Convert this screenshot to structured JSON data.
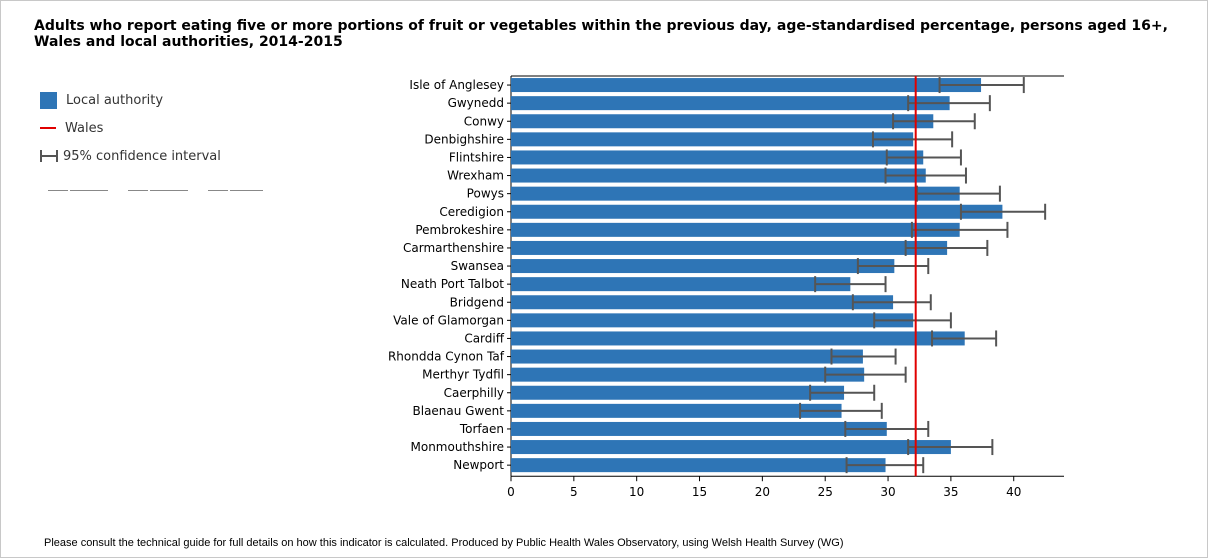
{
  "title": "Adults who report eating five or more portions of fruit or vegetables within the previous day, age-standardised percentage, persons aged 16+, Wales and local authorities, 2014-2015",
  "legend": {
    "local_authority": "Local authority",
    "wales": "Wales",
    "ci": "95% confidence interval"
  },
  "footnote": "Please consult the technical guide for full details on how this indicator is calculated.  Produced by Public Health Wales Observatory, using Welsh Health Survey (WG)",
  "colors": {
    "bar": "#2e75b6",
    "wales_line": "#e00000",
    "ci": "#555555"
  },
  "chart_data": {
    "type": "bar",
    "orientation": "horizontal",
    "categories": [
      "Isle of Anglesey",
      "Gwynedd",
      "Conwy",
      "Denbighshire",
      "Flintshire",
      "Wrexham",
      "Powys",
      "Ceredigion",
      "Pembrokeshire",
      "Carmarthenshire",
      "Swansea",
      "Neath Port Talbot",
      "Bridgend",
      "Vale of Glamorgan",
      "Cardiff",
      "Rhondda Cynon Taf",
      "Merthyr Tydfil",
      "Caerphilly",
      "Blaenau Gwent",
      "Torfaen",
      "Monmouthshire",
      "Newport"
    ],
    "values": [
      37.4,
      34.9,
      33.6,
      32.0,
      32.8,
      33.0,
      35.7,
      39.1,
      35.7,
      34.7,
      30.5,
      27.0,
      30.4,
      32.0,
      36.1,
      28.0,
      28.1,
      26.5,
      26.3,
      29.9,
      35.0,
      29.8
    ],
    "ci_lower": [
      34.1,
      31.6,
      30.4,
      28.8,
      29.9,
      29.8,
      32.3,
      35.8,
      31.9,
      31.4,
      27.6,
      24.2,
      27.2,
      28.9,
      33.5,
      25.5,
      25.0,
      23.8,
      23.0,
      26.6,
      31.6,
      26.7
    ],
    "ci_upper": [
      40.8,
      38.1,
      36.9,
      35.1,
      35.8,
      36.2,
      38.9,
      42.5,
      39.5,
      37.9,
      33.2,
      29.8,
      33.4,
      35.0,
      38.6,
      30.6,
      31.4,
      28.9,
      29.5,
      33.2,
      38.3,
      32.8
    ],
    "wales_value": 32.2,
    "xlim": [
      0,
      44
    ],
    "xticks": [
      0,
      5,
      10,
      15,
      20,
      25,
      30,
      35,
      40
    ],
    "legend_position": "top-left"
  }
}
